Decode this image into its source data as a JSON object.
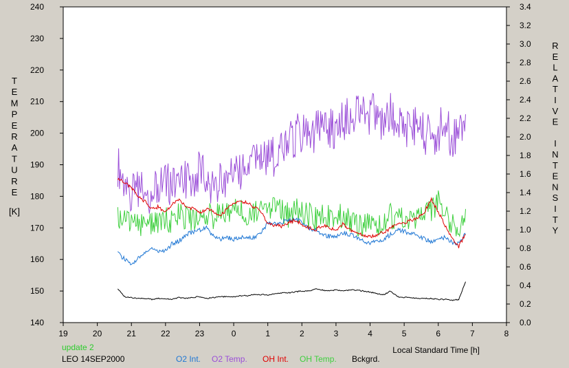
{
  "chart_data": {
    "type": "line",
    "xlabel": "Local Standard Time [h]",
    "ylabel_left_letters": [
      "T",
      "E",
      "M",
      "P",
      "E",
      "R",
      "A",
      "T",
      "U",
      "R",
      "E"
    ],
    "ylabel_left_unit": "[K]",
    "ylabel_right_letters": [
      "R",
      "E",
      "L",
      "A",
      "T",
      "I",
      "V",
      "E",
      "",
      "I",
      "N",
      "T",
      "E",
      "N",
      "S",
      "I",
      "T",
      "Y"
    ],
    "xlim": [
      19,
      32
    ],
    "ylim_left": [
      140,
      240
    ],
    "ylim_right": [
      0.0,
      3.4
    ],
    "x_ticks": [
      19,
      20,
      21,
      22,
      23,
      24,
      25,
      26,
      27,
      28,
      29,
      30,
      31,
      32
    ],
    "x_tick_labels": [
      "19",
      "20",
      "21",
      "22",
      "23",
      "0",
      "1",
      "2",
      "3",
      "4",
      "5",
      "6",
      "7",
      "8"
    ],
    "y_left_ticks": [
      140,
      150,
      160,
      170,
      180,
      190,
      200,
      210,
      220,
      230,
      240
    ],
    "y_left_tick_labels": [
      "140",
      "150",
      "160",
      "170",
      "180",
      "190",
      "200",
      "210",
      "220",
      "230",
      "240"
    ],
    "y_right_ticks": [
      0.0,
      0.2,
      0.4,
      0.6,
      0.8,
      1.0,
      1.2,
      1.4,
      1.6,
      1.8,
      2.0,
      2.2,
      2.4,
      2.6,
      2.8,
      3.0,
      3.2,
      3.4
    ],
    "y_right_tick_labels": [
      "0.0",
      "0.2",
      "0.4",
      "0.6",
      "0.8",
      "1.0",
      "1.2",
      "1.4",
      "1.6",
      "1.8",
      "2.0",
      "2.2",
      "2.4",
      "2.6",
      "2.8",
      "3.0",
      "3.2",
      "3.4"
    ],
    "grid": false,
    "annotations": [
      {
        "text": "update 2",
        "color": "#2ecc2e"
      },
      {
        "text": "LEO 14SEP2000",
        "color": "#000000"
      }
    ],
    "series": [
      {
        "name": "O2 Int.",
        "color": "#1f77d4",
        "axis": "right",
        "x": [
          20.6,
          20.8,
          21.0,
          21.2,
          21.4,
          21.6,
          21.8,
          22.0,
          22.2,
          22.4,
          22.6,
          22.8,
          23.0,
          23.2,
          23.4,
          23.6,
          23.8,
          24.0,
          24.2,
          24.4,
          24.6,
          24.8,
          25.0,
          25.2,
          25.4,
          25.6,
          25.8,
          26.0,
          26.2,
          26.4,
          26.6,
          26.8,
          27.0,
          27.2,
          27.4,
          27.6,
          27.8,
          28.0,
          28.2,
          28.4,
          28.6,
          28.8,
          29.0,
          29.2,
          29.4,
          29.6,
          29.8,
          30.0,
          30.2,
          30.4,
          30.6,
          30.8
        ],
        "y": [
          0.75,
          0.68,
          0.62,
          0.7,
          0.74,
          0.8,
          0.77,
          0.78,
          0.85,
          0.88,
          0.95,
          0.97,
          1.0,
          1.02,
          0.93,
          0.9,
          0.92,
          0.9,
          0.91,
          0.93,
          0.91,
          0.97,
          1.07,
          1.06,
          1.08,
          1.1,
          1.11,
          1.08,
          1.02,
          1.0,
          0.95,
          0.93,
          0.92,
          0.97,
          0.95,
          0.92,
          0.88,
          0.86,
          0.87,
          0.9,
          0.95,
          1.0,
          0.98,
          0.96,
          0.93,
          0.9,
          0.87,
          0.89,
          0.92,
          0.86,
          0.85,
          0.95
        ]
      },
      {
        "name": "O2 Temp.",
        "color": "#9b4fd8",
        "axis": "left",
        "x": [
          20.6,
          20.8,
          21.0,
          21.2,
          21.4,
          21.6,
          21.8,
          22.0,
          22.2,
          22.4,
          22.6,
          22.8,
          23.0,
          23.2,
          23.4,
          23.6,
          23.8,
          24.0,
          24.2,
          24.4,
          24.6,
          24.8,
          25.0,
          25.2,
          25.4,
          25.6,
          25.8,
          26.0,
          26.2,
          26.4,
          26.6,
          26.8,
          27.0,
          27.2,
          27.4,
          27.6,
          27.8,
          28.0,
          28.2,
          28.4,
          28.6,
          28.8,
          29.0,
          29.2,
          29.4,
          29.6,
          29.8,
          30.0,
          30.2,
          30.4,
          30.6,
          30.8
        ],
        "y": [
          190,
          184,
          180,
          182,
          183,
          180,
          184,
          183,
          185,
          182,
          186,
          184,
          188,
          185,
          183,
          184,
          187,
          188,
          186,
          189,
          191,
          193,
          192,
          193,
          195,
          196,
          199,
          200,
          198,
          201,
          200,
          202,
          201,
          203,
          205,
          206,
          207,
          206,
          205,
          204,
          206,
          202,
          203,
          201,
          203,
          200,
          199,
          201,
          202,
          199,
          200,
          206
        ]
      },
      {
        "name": "OH Int.",
        "color": "#e00000",
        "axis": "right",
        "x": [
          20.6,
          20.8,
          21.0,
          21.2,
          21.4,
          21.6,
          21.8,
          22.0,
          22.2,
          22.4,
          22.6,
          22.8,
          23.0,
          23.2,
          23.4,
          23.6,
          23.8,
          24.0,
          24.2,
          24.4,
          24.6,
          24.8,
          25.0,
          25.2,
          25.4,
          25.6,
          25.8,
          26.0,
          26.2,
          26.4,
          26.6,
          26.8,
          27.0,
          27.2,
          27.4,
          27.6,
          27.8,
          28.0,
          28.2,
          28.4,
          28.6,
          28.8,
          29.0,
          29.2,
          29.4,
          29.6,
          29.8,
          30.0,
          30.2,
          30.4,
          30.6,
          30.8
        ],
        "y": [
          1.55,
          1.5,
          1.45,
          1.35,
          1.3,
          1.22,
          1.25,
          1.18,
          1.28,
          1.32,
          1.25,
          1.23,
          1.18,
          1.22,
          1.2,
          1.15,
          1.22,
          1.28,
          1.3,
          1.3,
          1.24,
          1.2,
          1.07,
          1.05,
          1.04,
          1.08,
          1.1,
          1.06,
          1.02,
          1.0,
          1.05,
          1.02,
          1.0,
          1.06,
          1.0,
          0.98,
          0.94,
          0.92,
          0.95,
          0.97,
          1.02,
          1.05,
          1.08,
          1.1,
          1.12,
          1.2,
          1.32,
          1.2,
          1.05,
          0.9,
          0.82,
          0.95
        ]
      },
      {
        "name": "OH Temp.",
        "color": "#3ecf3e",
        "axis": "left",
        "x": [
          20.6,
          20.8,
          21.0,
          21.2,
          21.4,
          21.6,
          21.8,
          22.0,
          22.2,
          22.4,
          22.6,
          22.8,
          23.0,
          23.2,
          23.4,
          23.6,
          23.8,
          24.0,
          24.2,
          24.4,
          24.6,
          24.8,
          25.0,
          25.2,
          25.4,
          25.6,
          25.8,
          26.0,
          26.2,
          26.4,
          26.6,
          26.8,
          27.0,
          27.2,
          27.4,
          27.6,
          27.8,
          28.0,
          28.2,
          28.4,
          28.6,
          28.8,
          29.0,
          29.2,
          29.4,
          29.6,
          29.8,
          30.0,
          30.2,
          30.4,
          30.6,
          30.8
        ],
        "y": [
          173,
          174,
          172,
          171,
          170,
          172,
          171,
          173,
          172,
          174,
          173,
          172,
          174,
          175,
          173,
          176,
          174,
          175,
          176,
          174,
          175,
          177,
          177,
          176,
          175,
          174,
          176,
          175,
          174,
          173,
          175,
          174,
          173,
          174,
          172,
          171,
          170,
          172,
          171,
          173,
          174,
          172,
          173,
          172,
          174,
          175,
          176,
          178,
          174,
          172,
          170,
          176
        ]
      },
      {
        "name": "Bckgrd.",
        "color": "#000000",
        "axis": "right",
        "x": [
          20.6,
          20.8,
          21.0,
          21.2,
          21.4,
          21.6,
          21.8,
          22.0,
          22.2,
          22.4,
          22.6,
          22.8,
          23.0,
          23.2,
          23.4,
          23.6,
          23.8,
          24.0,
          24.2,
          24.4,
          24.6,
          24.8,
          25.0,
          25.2,
          25.4,
          25.6,
          25.8,
          26.0,
          26.2,
          26.4,
          26.6,
          26.8,
          27.0,
          27.2,
          27.4,
          27.6,
          27.8,
          28.0,
          28.2,
          28.4,
          28.6,
          28.8,
          29.0,
          29.2,
          29.4,
          29.6,
          29.8,
          30.0,
          30.2,
          30.4,
          30.6,
          30.8
        ],
        "y": [
          0.36,
          0.28,
          0.27,
          0.26,
          0.26,
          0.25,
          0.26,
          0.26,
          0.25,
          0.27,
          0.26,
          0.27,
          0.28,
          0.26,
          0.27,
          0.28,
          0.28,
          0.28,
          0.29,
          0.29,
          0.3,
          0.3,
          0.3,
          0.31,
          0.32,
          0.32,
          0.33,
          0.34,
          0.34,
          0.36,
          0.35,
          0.34,
          0.35,
          0.34,
          0.35,
          0.35,
          0.34,
          0.33,
          0.31,
          0.3,
          0.34,
          0.28,
          0.27,
          0.27,
          0.26,
          0.26,
          0.26,
          0.25,
          0.25,
          0.24,
          0.25,
          0.44
        ]
      }
    ]
  }
}
